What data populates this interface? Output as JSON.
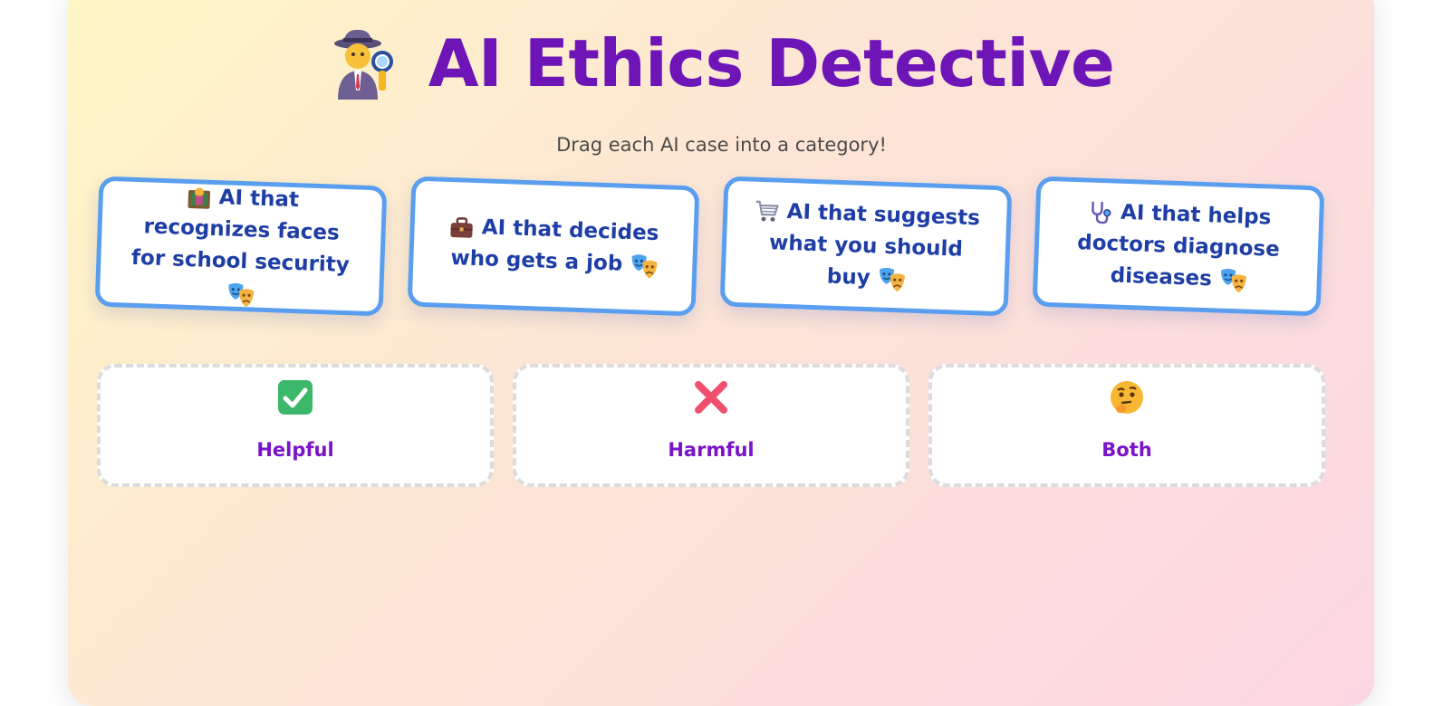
{
  "header": {
    "title": "AI Ethics Detective",
    "title_icon": "detective-icon",
    "subtitle": "Drag each AI case into a category!"
  },
  "cards": [
    {
      "label": "AI that recognizes faces for school security",
      "icon": "school-icon",
      "tag_icon": "theater-masks-icon"
    },
    {
      "label": "AI that decides who gets a job",
      "icon": "briefcase-icon",
      "tag_icon": "theater-masks-icon"
    },
    {
      "label": "AI that suggests what you should buy",
      "icon": "shopping-cart-icon",
      "tag_icon": "theater-masks-icon"
    },
    {
      "label": "AI that helps doctors diagnose diseases",
      "icon": "stethoscope-icon",
      "tag_icon": "theater-masks-icon"
    }
  ],
  "categories": [
    {
      "label": "Helpful",
      "icon": "check-mark-icon"
    },
    {
      "label": "Harmful",
      "icon": "cross-mark-icon"
    },
    {
      "label": "Both",
      "icon": "thinking-face-icon"
    }
  ],
  "colors": {
    "title": "#6e15b8",
    "card_text": "#1e3ea6",
    "card_border": "#5a9ef0",
    "category_label": "#7a13c9",
    "check_green": "#3cb86a",
    "cross_red": "#f0506e"
  }
}
